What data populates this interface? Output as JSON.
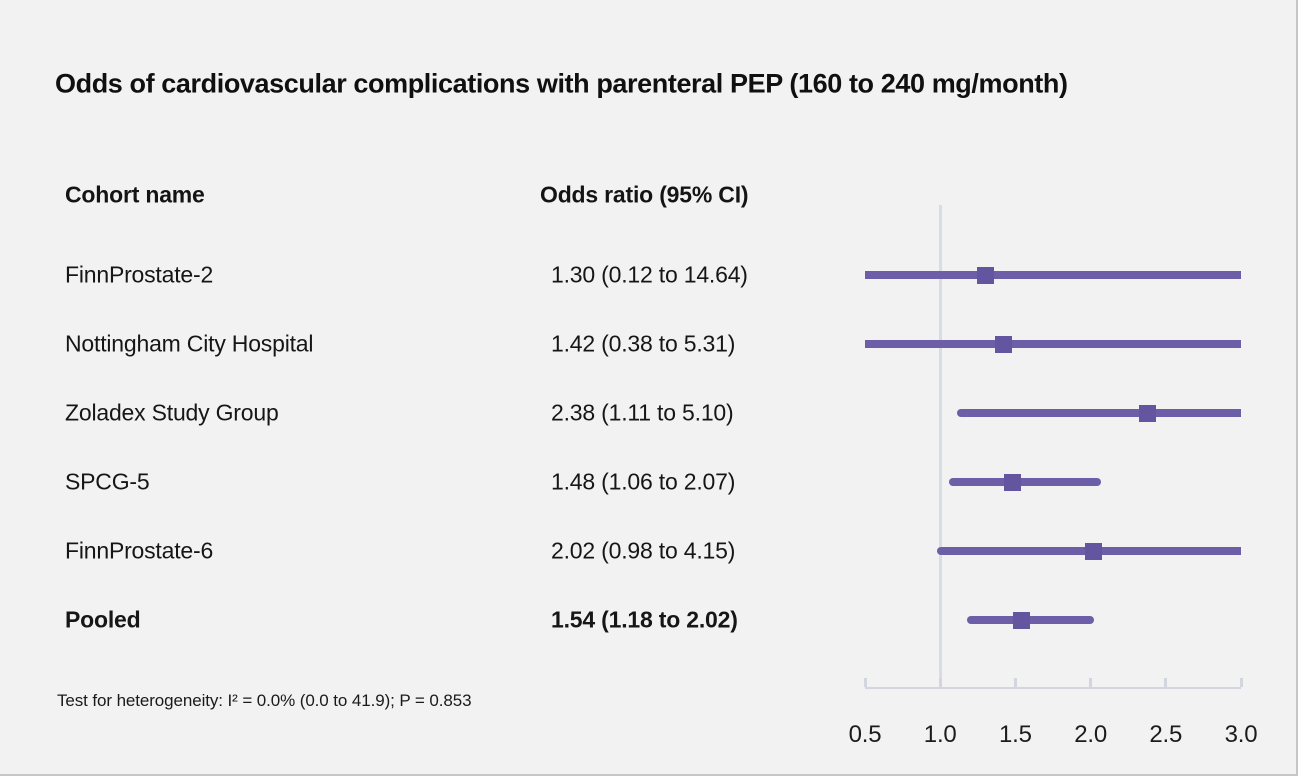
{
  "title": "Odds of cardiovascular complications with parenteral PEP (160 to 240 mg/month)",
  "table": {
    "col1_header": "Cohort name",
    "col2_header": "Odds ratio (95% CI)"
  },
  "footnote": "Test for heterogeneity: I² = 0.0% (0.0 to 41.9); P = 0.853",
  "colors": {
    "background": "#f2f2f2",
    "ci_line": "#6c5fa7",
    "marker": "#63559f",
    "axis": "#d3d7dd",
    "reference_line": "#d8dce3",
    "text": "#141414"
  },
  "chart_data": {
    "type": "forest",
    "title": "Odds of cardiovascular complications with parenteral PEP (160 to 240 mg/month)",
    "x_axis": {
      "min": 0.5,
      "max": 3.0,
      "scale": "linear",
      "tick_labels": [
        "0.5",
        "1.0",
        "1.5",
        "2.0",
        "2.5",
        "3.0"
      ],
      "reference_line": 1.0
    },
    "rows": [
      {
        "cohort": "FinnProstate-2",
        "or_text": "1.30 (0.12 to 14.64)",
        "estimate": 1.3,
        "ci_low": 0.12,
        "ci_high": 14.64,
        "bold": false
      },
      {
        "cohort": "Nottingham City Hospital",
        "or_text": "1.42 (0.38 to 5.31)",
        "estimate": 1.42,
        "ci_low": 0.38,
        "ci_high": 5.31,
        "bold": false
      },
      {
        "cohort": "Zoladex Study Group",
        "or_text": "2.38 (1.11 to 5.10)",
        "estimate": 2.38,
        "ci_low": 1.11,
        "ci_high": 5.1,
        "bold": false
      },
      {
        "cohort": "SPCG-5",
        "or_text": "1.48 (1.06 to 2.07)",
        "estimate": 1.48,
        "ci_low": 1.06,
        "ci_high": 2.07,
        "bold": false
      },
      {
        "cohort": "FinnProstate-6",
        "or_text": "2.02 (0.98 to 4.15)",
        "estimate": 2.02,
        "ci_low": 0.98,
        "ci_high": 4.15,
        "bold": false
      },
      {
        "cohort": "Pooled",
        "or_text": "1.54 (1.18 to 2.02)",
        "estimate": 1.54,
        "ci_low": 1.18,
        "ci_high": 2.02,
        "bold": true
      }
    ],
    "heterogeneity_note": "Test for heterogeneity: I² = 0.0% (0.0 to 41.9); P = 0.853"
  }
}
